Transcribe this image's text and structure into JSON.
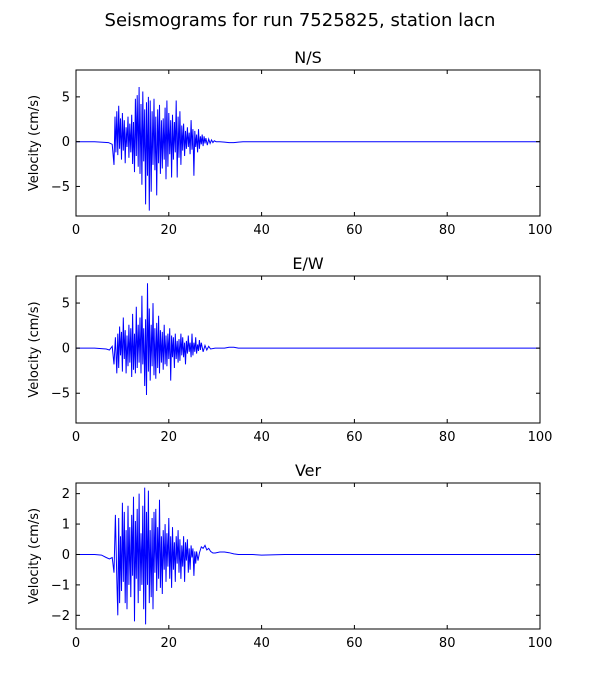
{
  "figure": {
    "title": "Seismograms for run 7525825, station lacn"
  },
  "chart_data": [
    {
      "type": "line",
      "title": "N/S",
      "xlabel": "",
      "ylabel": "Velocity (cm/s)",
      "xlim": [
        0,
        100
      ],
      "ylim": [
        -8.3,
        8.0
      ],
      "xticks": [
        0,
        20,
        40,
        60,
        80,
        100
      ],
      "yticks": [
        5,
        0,
        -5
      ],
      "grid": false,
      "color": "#0000ff",
      "x": [
        0,
        4,
        7,
        7.8,
        8.2,
        8.4,
        8.6,
        8.8,
        9.0,
        9.2,
        9.4,
        9.6,
        9.8,
        10.0,
        10.2,
        10.4,
        10.6,
        10.8,
        11.0,
        11.2,
        11.4,
        11.6,
        11.8,
        12.0,
        12.2,
        12.4,
        12.6,
        12.8,
        13.0,
        13.2,
        13.4,
        13.6,
        13.8,
        14.0,
        14.2,
        14.4,
        14.6,
        14.8,
        15.0,
        15.2,
        15.4,
        15.6,
        15.8,
        16.0,
        16.2,
        16.4,
        16.6,
        16.8,
        17.0,
        17.2,
        17.4,
        17.6,
        17.8,
        18.0,
        18.2,
        18.4,
        18.6,
        18.8,
        19.0,
        19.2,
        19.4,
        19.6,
        19.8,
        20.0,
        20.2,
        20.4,
        20.6,
        20.8,
        21.0,
        21.2,
        21.4,
        21.6,
        21.8,
        22.0,
        22.2,
        22.4,
        22.6,
        22.8,
        23.0,
        23.2,
        23.4,
        23.6,
        23.8,
        24.0,
        24.2,
        24.4,
        24.6,
        24.8,
        25.0,
        25.2,
        25.4,
        25.6,
        25.8,
        26.0,
        26.2,
        26.4,
        26.6,
        26.8,
        27.0,
        27.2,
        27.4,
        27.6,
        27.8,
        28.0,
        28.3,
        28.6,
        28.9,
        29.2,
        29.5,
        29.8,
        30.2,
        30.6,
        31.0,
        32,
        33,
        34,
        35,
        36,
        38,
        40,
        50,
        60,
        70,
        80,
        90,
        100
      ],
      "y": [
        0,
        0,
        -0.1,
        -0.3,
        -2.6,
        2.8,
        -1.2,
        3.4,
        -1.5,
        4.0,
        -0.8,
        2.6,
        -2.0,
        3.2,
        -1.0,
        2.4,
        -2.4,
        1.6,
        -0.6,
        2.8,
        -1.8,
        2.0,
        -1.2,
        3.0,
        -2.5,
        2.2,
        -3.4,
        4.8,
        -1.6,
        5.2,
        -2.8,
        6.1,
        -3.6,
        4.2,
        -4.8,
        5.6,
        -2.2,
        3.6,
        -7.0,
        4.4,
        -3.8,
        5.0,
        -7.7,
        4.6,
        -5.6,
        3.4,
        -2.6,
        4.8,
        -3.2,
        2.8,
        -6.0,
        3.6,
        -2.4,
        4.1,
        -3.6,
        2.4,
        -3.0,
        2.6,
        -2.0,
        3.8,
        -4.2,
        4.6,
        -2.8,
        3.2,
        -1.4,
        2.4,
        -4.0,
        3.0,
        -2.0,
        2.2,
        -1.2,
        4.6,
        -4.0,
        2.8,
        -1.8,
        3.4,
        -2.6,
        1.8,
        -1.0,
        2.0,
        -1.6,
        1.2,
        -0.8,
        1.6,
        -0.6,
        1.0,
        -1.4,
        2.4,
        -0.9,
        1.4,
        -3.8,
        1.2,
        -0.6,
        0.8,
        -1.2,
        1.4,
        -0.8,
        0.6,
        -0.3,
        0.8,
        -0.5,
        0.6,
        -0.2,
        0.4,
        -0.4,
        0.3,
        -0.2,
        0.2,
        -0.1,
        0.1,
        0,
        0,
        0,
        -0.05,
        -0.1,
        -0.1,
        -0.05,
        0,
        0,
        0,
        0,
        0,
        0,
        0,
        0,
        0
      ]
    },
    {
      "type": "line",
      "title": "E/W",
      "xlabel": "",
      "ylabel": "Velocity (cm/s)",
      "xlim": [
        0,
        100
      ],
      "ylim": [
        -8.3,
        8.0
      ],
      "xticks": [
        0,
        20,
        40,
        60,
        80,
        100
      ],
      "yticks": [
        5,
        0,
        -5
      ],
      "grid": false,
      "color": "#0000ff",
      "x": [
        0,
        4,
        6.5,
        7.2,
        7.8,
        8.2,
        8.5,
        8.8,
        9.0,
        9.2,
        9.4,
        9.6,
        9.8,
        10.0,
        10.2,
        10.4,
        10.6,
        10.8,
        11.0,
        11.2,
        11.4,
        11.6,
        11.8,
        12.0,
        12.2,
        12.4,
        12.6,
        12.8,
        13.0,
        13.2,
        13.4,
        13.6,
        13.8,
        14.0,
        14.2,
        14.4,
        14.6,
        14.8,
        15.0,
        15.2,
        15.4,
        15.6,
        15.8,
        16.0,
        16.2,
        16.4,
        16.6,
        16.8,
        17.0,
        17.2,
        17.4,
        17.6,
        17.8,
        18.0,
        18.2,
        18.4,
        18.6,
        18.8,
        19.0,
        19.2,
        19.4,
        19.6,
        19.8,
        20.0,
        20.2,
        20.4,
        20.6,
        20.8,
        21.0,
        21.2,
        21.4,
        21.6,
        21.8,
        22.0,
        22.2,
        22.4,
        22.6,
        22.8,
        23.0,
        23.2,
        23.4,
        23.6,
        23.8,
        24.0,
        24.2,
        24.4,
        24.6,
        24.8,
        25.0,
        25.2,
        25.4,
        25.6,
        25.8,
        26.0,
        26.2,
        26.4,
        26.6,
        26.8,
        27.0,
        27.4,
        27.8,
        28.2,
        28.6,
        29.0,
        30,
        31,
        32,
        33,
        34,
        35,
        36,
        38,
        40,
        50,
        60,
        70,
        80,
        90,
        100
      ],
      "y": [
        0,
        0,
        -0.1,
        -0.2,
        0.2,
        -1.8,
        1.2,
        -2.8,
        1.6,
        -2.2,
        2.4,
        -0.8,
        1.8,
        -2.6,
        3.4,
        -1.2,
        2.0,
        -2.8,
        1.4,
        -2.0,
        2.6,
        -1.6,
        2.2,
        -3.2,
        3.8,
        -2.4,
        1.6,
        -2.8,
        4.6,
        -2.2,
        2.6,
        -1.6,
        3.4,
        -2.8,
        5.8,
        -1.8,
        2.2,
        -4.2,
        3.2,
        -5.2,
        7.2,
        -2.6,
        4.4,
        -3.6,
        2.6,
        -2.0,
        5.0,
        -3.0,
        2.2,
        -3.4,
        2.8,
        -2.2,
        3.6,
        -2.8,
        2.0,
        -1.6,
        1.8,
        -2.4,
        2.6,
        -1.8,
        1.4,
        -2.0,
        1.6,
        -1.2,
        2.2,
        -3.6,
        1.4,
        -1.0,
        1.2,
        -2.2,
        1.6,
        -1.2,
        0.8,
        -1.6,
        1.0,
        -1.4,
        1.6,
        -0.8,
        1.2,
        -1.0,
        0.6,
        -1.8,
        0.8,
        -0.6,
        1.4,
        -0.4,
        0.6,
        -1.0,
        1.6,
        -0.8,
        0.6,
        -0.4,
        1.2,
        -0.6,
        0.4,
        -0.3,
        0.9,
        -0.2,
        0.6,
        -0.4,
        0.3,
        -0.2,
        0.2,
        -0.1,
        0,
        0,
        0,
        0.1,
        0.1,
        0,
        0,
        0,
        0,
        0,
        0,
        0,
        0,
        0,
        0
      ]
    },
    {
      "type": "line",
      "title": "Ver",
      "xlabel": "",
      "ylabel": "Velocity (cm/s)",
      "xlim": [
        0,
        100
      ],
      "ylim": [
        -2.45,
        2.35
      ],
      "xticks": [
        0,
        20,
        40,
        60,
        80,
        100
      ],
      "yticks": [
        2,
        1,
        0,
        -1,
        -2
      ],
      "grid": false,
      "color": "#0000ff",
      "x": [
        0,
        4,
        5.5,
        6.5,
        7.2,
        7.8,
        8.2,
        8.5,
        8.8,
        9.0,
        9.2,
        9.4,
        9.6,
        9.8,
        10.0,
        10.2,
        10.4,
        10.6,
        10.8,
        11.0,
        11.2,
        11.4,
        11.6,
        11.8,
        12.0,
        12.2,
        12.4,
        12.6,
        12.8,
        13.0,
        13.2,
        13.4,
        13.6,
        13.8,
        14.0,
        14.2,
        14.4,
        14.6,
        14.8,
        15.0,
        15.2,
        15.4,
        15.6,
        15.8,
        16.0,
        16.2,
        16.4,
        16.6,
        16.8,
        17.0,
        17.2,
        17.4,
        17.6,
        17.8,
        18.0,
        18.2,
        18.4,
        18.6,
        18.8,
        19.0,
        19.2,
        19.4,
        19.6,
        19.8,
        20.0,
        20.2,
        20.4,
        20.6,
        20.8,
        21.0,
        21.2,
        21.4,
        21.6,
        21.8,
        22.0,
        22.2,
        22.4,
        22.6,
        22.8,
        23.0,
        23.2,
        23.4,
        23.6,
        23.8,
        24.0,
        24.2,
        24.4,
        24.6,
        24.8,
        25.0,
        25.2,
        25.4,
        25.6,
        25.8,
        26.0,
        26.3,
        26.6,
        27.0,
        27.4,
        27.8,
        28.2,
        28.6,
        29.0,
        29.5,
        30,
        31,
        32,
        33,
        34,
        35,
        36,
        38,
        40,
        45,
        50,
        60,
        70,
        80,
        90,
        100
      ],
      "y": [
        0,
        0,
        -0.02,
        -0.1,
        -0.15,
        -0.1,
        -0.6,
        1.3,
        -0.8,
        -2.0,
        1.2,
        -1.6,
        0.6,
        -1.2,
        1.7,
        -0.9,
        1.4,
        -1.6,
        0.8,
        -1.8,
        1.6,
        -1.0,
        0.9,
        -1.4,
        1.3,
        -0.7,
        1.9,
        -2.2,
        1.1,
        -0.8,
        1.5,
        -1.6,
        2.0,
        -1.2,
        0.7,
        -1.0,
        1.6,
        -1.8,
        2.2,
        -2.3,
        1.4,
        -1.0,
        2.1,
        -1.6,
        0.8,
        -1.4,
        1.2,
        -1.8,
        1.4,
        -0.6,
        1.5,
        -1.2,
        0.9,
        -0.8,
        1.8,
        -1.1,
        0.6,
        -1.3,
        0.8,
        -0.5,
        1.0,
        -0.9,
        0.7,
        -0.4,
        1.2,
        -0.8,
        0.6,
        -1.1,
        0.9,
        -0.5,
        0.4,
        -0.9,
        0.6,
        -0.3,
        0.8,
        -0.6,
        0.5,
        -0.8,
        0.3,
        -0.4,
        0.6,
        -0.9,
        0.4,
        -0.2,
        0.5,
        -0.6,
        0.2,
        -0.5,
        0.3,
        -0.1,
        0.2,
        -0.7,
        0.1,
        -0.3,
        0.1,
        -0.2,
        0.05,
        0.25,
        0.2,
        0.3,
        0.15,
        0.2,
        0.1,
        0.05,
        0.05,
        0.08,
        0.08,
        0.06,
        0.02,
        0,
        0,
        0,
        -0.02,
        0,
        0,
        0,
        0,
        0,
        0,
        0
      ]
    }
  ]
}
